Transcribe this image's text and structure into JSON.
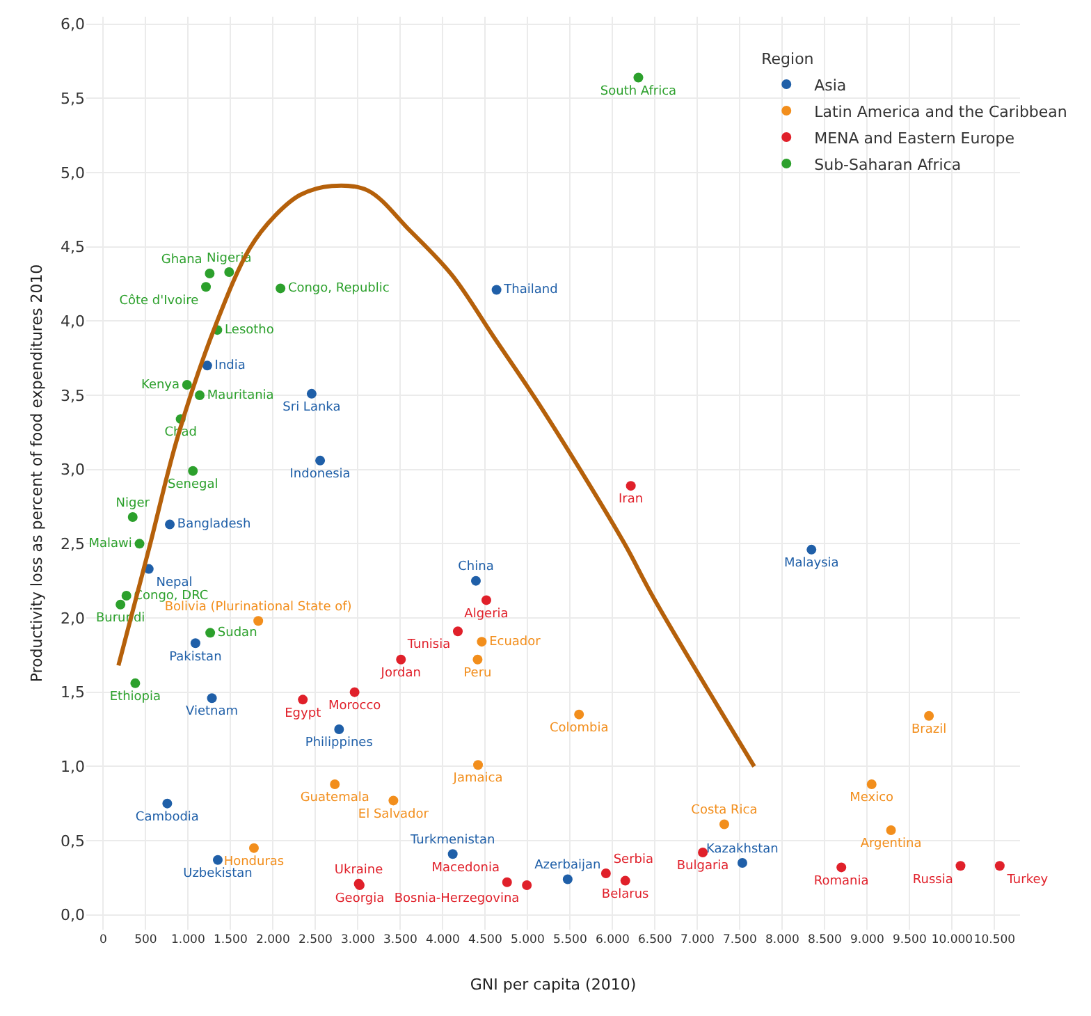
{
  "chart_data": {
    "type": "scatter",
    "xlabel": "GNI per capita (2010)",
    "ylabel": "Productivity loss as percent of food expenditures 2010",
    "legend_title": "Region",
    "legend": "top right",
    "grid": true,
    "marker": "circle",
    "xlim": [
      -200,
      10800
    ],
    "ylim": [
      -0.1,
      6.05
    ],
    "xticks": [
      {
        "value": 0,
        "label": "0"
      },
      {
        "value": 500,
        "label": "500"
      },
      {
        "value": 1000,
        "label": "1.000"
      },
      {
        "value": 1500,
        "label": "1.500"
      },
      {
        "value": 2000,
        "label": "2.000"
      },
      {
        "value": 2500,
        "label": "2.500"
      },
      {
        "value": 3000,
        "label": "3.000"
      },
      {
        "value": 3500,
        "label": "3.500"
      },
      {
        "value": 4000,
        "label": "4.000"
      },
      {
        "value": 4500,
        "label": "4.500"
      },
      {
        "value": 5000,
        "label": "5.000"
      },
      {
        "value": 5500,
        "label": "5.500"
      },
      {
        "value": 6000,
        "label": "6.000"
      },
      {
        "value": 6500,
        "label": "6.500"
      },
      {
        "value": 7000,
        "label": "7.000"
      },
      {
        "value": 7500,
        "label": "7.500"
      },
      {
        "value": 8000,
        "label": "8.000"
      },
      {
        "value": 8500,
        "label": "8.500"
      },
      {
        "value": 9000,
        "label": "9.000"
      },
      {
        "value": 9500,
        "label": "9.500"
      },
      {
        "value": 10000,
        "label": "10.000"
      },
      {
        "value": 10500,
        "label": "10.500"
      }
    ],
    "yticks": [
      {
        "value": 0,
        "label": "0,0"
      },
      {
        "value": 0.5,
        "label": "0,5"
      },
      {
        "value": 1,
        "label": "1,0"
      },
      {
        "value": 1.5,
        "label": "1,5"
      },
      {
        "value": 2,
        "label": "2,0"
      },
      {
        "value": 2.5,
        "label": "2,5"
      },
      {
        "value": 3,
        "label": "3,0"
      },
      {
        "value": 3.5,
        "label": "3,5"
      },
      {
        "value": 4,
        "label": "4,0"
      },
      {
        "value": 4.5,
        "label": "4,5"
      },
      {
        "value": 5,
        "label": "5,0"
      },
      {
        "value": 5.5,
        "label": "5,5"
      },
      {
        "value": 6,
        "label": "6,0"
      }
    ],
    "series": [
      {
        "name": "Asia",
        "color": "#1f5fa8",
        "x": [
          1225,
          784,
          536,
          1086,
          1280,
          2455,
          2555,
          2778,
          754,
          1349,
          4117,
          4390,
          4633,
          8343,
          5471,
          7529
        ],
        "values": [
          3.7,
          2.63,
          2.33,
          1.83,
          1.46,
          3.51,
          3.06,
          1.25,
          0.75,
          0.37,
          0.41,
          2.25,
          4.21,
          2.46,
          0.24,
          0.35
        ],
        "value_labels": [
          "India",
          "Bangladesh",
          "Nepal",
          "Pakistan",
          "Vietnam",
          "Sri Lanka",
          "Indonesia",
          "Philippines",
          "Cambodia",
          "Uzbekistan",
          "Turkmenistan",
          "China",
          "Thailand",
          "Malaysia",
          "Azerbaijan",
          "Kazakhstan"
        ]
      },
      {
        "name": "Latin America and the Caribbean",
        "color": "#f28e1c",
        "x": [
          1826,
          4459,
          4410,
          5605,
          4415,
          2728,
          3418,
          1775,
          7316,
          9052,
          9280,
          9727
        ],
        "values": [
          1.98,
          1.84,
          1.72,
          1.35,
          1.01,
          0.88,
          0.77,
          0.45,
          0.61,
          0.88,
          0.57,
          1.34
        ],
        "value_labels": [
          "Bolivia (Plurinational State of)",
          "Ecuador",
          "Peru",
          "Colombia",
          "Jamaica",
          "Guatemala",
          "El Salvador",
          "Honduras",
          "Costa Rica",
          "Mexico",
          "Argentina",
          "Brazil"
        ]
      },
      {
        "name": "MENA and Eastern Europe",
        "color": "#e0202a",
        "x": [
          2351,
          2961,
          3507,
          4177,
          4513,
          6215,
          3010,
          3021,
          4757,
          4990,
          5922,
          6150,
          7063,
          8695,
          10099,
          10561
        ],
        "values": [
          1.45,
          1.5,
          1.72,
          1.91,
          2.12,
          2.89,
          0.21,
          0.2,
          0.22,
          0.2,
          0.28,
          0.23,
          0.42,
          0.32,
          0.33,
          0.33
        ],
        "value_labels": [
          "Egypt",
          "Morocco",
          "Jordan",
          "Tunisia",
          "Algeria",
          "Iran",
          "Ukraine",
          "Georgia",
          "Macedonia",
          "Bosnia-Herzegovina",
          "Serbia",
          "Belarus",
          "Bulgaria",
          "Romania",
          "Russia",
          "Turkey"
        ]
      },
      {
        "name": "Sub-Saharan Africa",
        "color": "#2ca02c",
        "x": [
          1254,
          1483,
          1210,
          2088,
          1344,
          987,
          1136,
          912,
          1056,
          347,
          427,
          273,
          203,
          1260,
          377,
          6304
        ],
        "values": [
          4.32,
          4.33,
          4.23,
          4.22,
          3.94,
          3.57,
          3.5,
          3.34,
          2.99,
          2.68,
          2.5,
          2.15,
          2.09,
          1.9,
          1.56,
          5.64
        ],
        "value_labels": [
          "Ghana",
          "Nigeria",
          "Côte d'Ivoire",
          "Congo, Republic",
          "Lesotho",
          "Kenya",
          "Mauritania",
          "Chad",
          "Senegal",
          "Niger",
          "Malawi",
          "Congo, DRC",
          "Burundi",
          "Sudan",
          "Ethiopia",
          "South Africa"
        ]
      },
      {
        "type": "line",
        "marker": "none",
        "color": "#b5600a",
        "x": [
          179,
          536,
          882,
          1329,
          1726,
          2024,
          2321,
          2693,
          3114,
          3611,
          4107,
          4603,
          5099,
          5595,
          6141,
          6488,
          7668
        ],
        "values": [
          1.68,
          2.46,
          3.23,
          3.98,
          4.49,
          4.71,
          4.85,
          4.91,
          4.88,
          4.61,
          4.31,
          3.89,
          3.47,
          3.02,
          2.5,
          2.13,
          1.0
        ]
      }
    ]
  }
}
